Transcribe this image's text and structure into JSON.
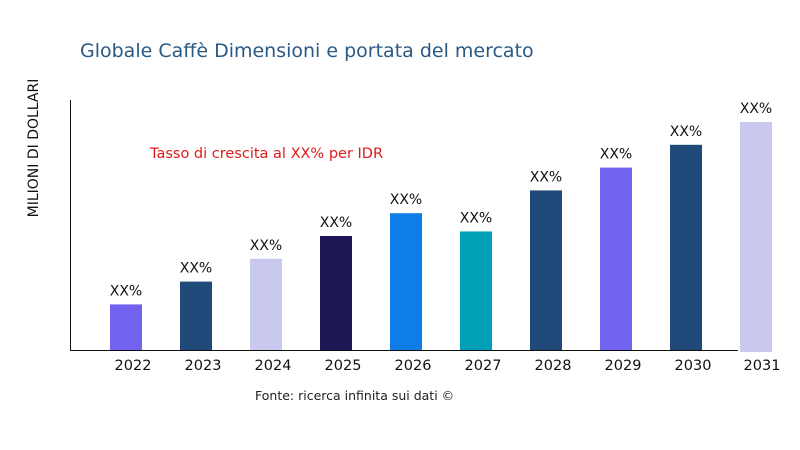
{
  "chart_data": {
    "type": "bar",
    "title": "Globale Caffè Dimensioni e portata del mercato",
    "ylabel": "MILIONI DI DOLLARI",
    "xlabel": "",
    "categories": [
      "2022",
      "2023",
      "2024",
      "2025",
      "2026",
      "2027",
      "2028",
      "2029",
      "2030",
      "2031"
    ],
    "values": [
      20,
      30,
      40,
      50,
      60,
      52,
      70,
      80,
      90,
      100
    ],
    "data_labels": [
      "XX%",
      "XX%",
      "XX%",
      "XX%",
      "XX%",
      "XX%",
      "XX%",
      "XX%",
      "XX%",
      "XX%"
    ],
    "colors": [
      "#7262f0",
      "#1f4a7a",
      "#c9c9f0",
      "#1e1756",
      "#0f7de6",
      "#00a0b8",
      "#1f4a7a",
      "#7262f0",
      "#1f4a7a",
      "#c9c9f0"
    ],
    "ylim": [
      0,
      110
    ],
    "grid": false,
    "annotation": "Tasso di crescita al XX% per IDR",
    "annotation_color": "#e0191b",
    "source": "Fonte: ricerca infinita sui dati ©"
  }
}
